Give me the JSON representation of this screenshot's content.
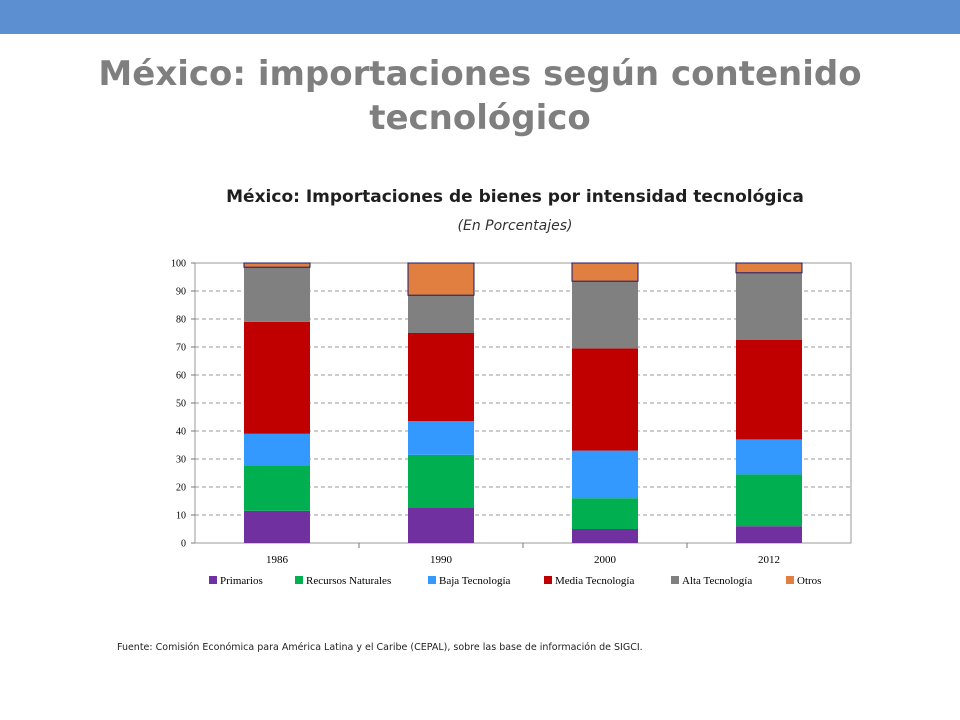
{
  "slide": {
    "title": "México: importaciones según contenido tecnológico",
    "source": "Fuente: Comisión Económica para América Latina y el Caribe (CEPAL), sobre las base de información de SIGCI."
  },
  "colors": {
    "top_bar": "#5b8fd1"
  },
  "chart_data": {
    "type": "bar",
    "stacked": true,
    "title": "México: Importaciones de bienes por intensidad tecnológica",
    "subtitle": "(En Porcentajes)",
    "categories": [
      "1986",
      "1990",
      "2000",
      "2012"
    ],
    "ylim": [
      0,
      100
    ],
    "yticks": [
      0,
      10,
      20,
      30,
      40,
      50,
      60,
      70,
      80,
      90,
      100
    ],
    "grid": true,
    "legend_position": "bottom",
    "series": [
      {
        "name": "Primarios",
        "color": "#7030a0",
        "values": [
          11.5,
          12.5,
          5,
          6
        ]
      },
      {
        "name": "Recursos Naturales",
        "color": "#00b050",
        "values": [
          16,
          19,
          11,
          18.5
        ]
      },
      {
        "name": "Baja Tecnología",
        "color": "#3399ff",
        "values": [
          11.5,
          12,
          17,
          12.5
        ]
      },
      {
        "name": "Media Tecnología",
        "color": "#c00000",
        "values": [
          40,
          31.5,
          36.5,
          35.5
        ]
      },
      {
        "name": "Alta Tecnología",
        "color": "#808080",
        "values": [
          19.5,
          13.5,
          24,
          24
        ]
      },
      {
        "name": "Otros",
        "color": "#e07f40",
        "values": [
          1.5,
          11.5,
          6.5,
          3.5
        ]
      }
    ]
  }
}
